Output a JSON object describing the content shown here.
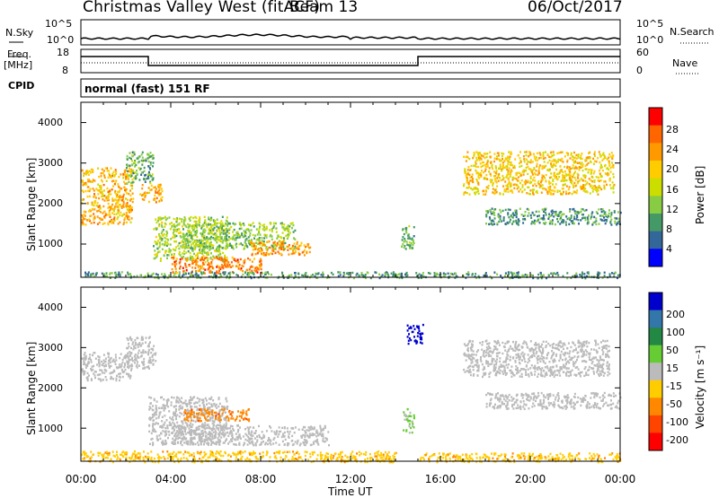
{
  "header": {
    "title": "Christmas Valley West (fitACF)",
    "beam": "Beam 13",
    "date": "06/Oct/2017"
  },
  "top_panels": {
    "nsky_label": "N.Sky",
    "nsky_ticks": [
      "10^5",
      "10^0"
    ],
    "nsearch_label": "N.Search",
    "nsearch_ticks": [
      "10^5",
      "10^0"
    ],
    "freq_label": "Freq.",
    "freq_unit": "[MHz]",
    "freq_ticks": [
      "18",
      "8"
    ],
    "nave_label": "Nave",
    "nave_ticks": [
      "60",
      "0"
    ],
    "cpid_label": "CPID",
    "cpid_mode": "normal (fast) 151 RF"
  },
  "chart_data": [
    {
      "type": "heatmap",
      "title": "",
      "ylabel": "Slant Range [km]",
      "xlabel": "",
      "ylim": [
        180,
        4500
      ],
      "yticks": [
        "4000",
        "3000",
        "2000",
        "1000"
      ],
      "colorbar": {
        "label": "Power [dB]",
        "ticks": [
          "28",
          "24",
          "20",
          "16",
          "12",
          "8",
          "4"
        ],
        "colors": [
          "#ff0000",
          "#ff6600",
          "#ff9900",
          "#ffcc00",
          "#ccdd00",
          "#88cc44",
          "#449966",
          "#336699",
          "#0000ff"
        ]
      },
      "regions": [
        {
          "t": [
            0.0,
            2.3
          ],
          "range": [
            1500,
            2900
          ],
          "power": 22
        },
        {
          "t": [
            2.0,
            3.2
          ],
          "range": [
            2500,
            3300
          ],
          "power": 10
        },
        {
          "t": [
            2.6,
            3.6
          ],
          "range": [
            2050,
            2500
          ],
          "power": 22
        },
        {
          "t": [
            3.2,
            6.5
          ],
          "range": [
            600,
            1700
          ],
          "power": 14
        },
        {
          "t": [
            4.5,
            9.5
          ],
          "range": [
            900,
            1550
          ],
          "power": 12
        },
        {
          "t": [
            4.0,
            8.0
          ],
          "range": [
            300,
            700
          ],
          "power": 26
        },
        {
          "t": [
            7.5,
            10.2
          ],
          "range": [
            750,
            1100
          ],
          "power": 24
        },
        {
          "t": [
            14.2,
            14.8
          ],
          "range": [
            900,
            1500
          ],
          "power": 10
        },
        {
          "t": [
            17.0,
            23.7
          ],
          "range": [
            2250,
            3300
          ],
          "power": 20
        },
        {
          "t": [
            18.0,
            24.0
          ],
          "range": [
            1500,
            1900
          ],
          "power": 8
        },
        {
          "t": [
            0.0,
            24.0
          ],
          "range": [
            180,
            330
          ],
          "power": 8
        }
      ]
    },
    {
      "type": "heatmap",
      "title": "",
      "ylabel": "Slant Range [km]",
      "xlabel": "Time UT",
      "ylim": [
        180,
        4500
      ],
      "yticks": [
        "4000",
        "3000",
        "2000",
        "1000"
      ],
      "xticks": [
        "00:00",
        "04:00",
        "08:00",
        "12:00",
        "16:00",
        "20:00",
        "00:00"
      ],
      "colorbar": {
        "label": "Velocity [m s⁻¹]",
        "ticks": [
          "200",
          "100",
          "50",
          "15",
          "-15",
          "-50",
          "-100",
          "-200"
        ],
        "colors": [
          "#0000cc",
          "#3377aa",
          "#228844",
          "#66cc33",
          "#bbbbbb",
          "#ffcc00",
          "#ff8800",
          "#ff4400",
          "#ff0000"
        ]
      },
      "regions": [
        {
          "t": [
            0.0,
            2.2
          ],
          "range": [
            2200,
            2900
          ],
          "velocity": 0
        },
        {
          "t": [
            2.0,
            3.3
          ],
          "range": [
            2500,
            3300
          ],
          "velocity": 0
        },
        {
          "t": [
            3.0,
            6.5
          ],
          "range": [
            600,
            1800
          ],
          "velocity": 0
        },
        {
          "t": [
            4.5,
            7.5
          ],
          "range": [
            1200,
            1500
          ],
          "velocity": -90
        },
        {
          "t": [
            4.0,
            11.0
          ],
          "range": [
            600,
            1100
          ],
          "velocity": 0
        },
        {
          "t": [
            0.0,
            14.0
          ],
          "range": [
            180,
            450
          ],
          "velocity": -40
        },
        {
          "t": [
            14.3,
            14.8
          ],
          "range": [
            900,
            1500
          ],
          "velocity": 20
        },
        {
          "t": [
            14.5,
            15.2
          ],
          "range": [
            3100,
            3600
          ],
          "velocity": 220
        },
        {
          "t": [
            15.0,
            24.0
          ],
          "range": [
            180,
            400
          ],
          "velocity": -40
        },
        {
          "t": [
            17.0,
            23.5
          ],
          "range": [
            2300,
            3200
          ],
          "velocity": 0
        },
        {
          "t": [
            18.0,
            24.0
          ],
          "range": [
            1500,
            1900
          ],
          "velocity": 0
        }
      ]
    }
  ]
}
